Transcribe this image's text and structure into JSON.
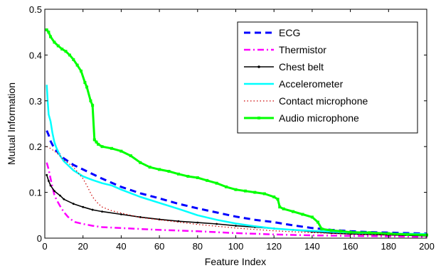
{
  "chart_data": {
    "type": "line",
    "xlabel": "Feature Index",
    "ylabel": "Mutual Information",
    "xlim": [
      0,
      200
    ],
    "ylim": [
      0,
      0.5
    ],
    "xticks": [
      0,
      20,
      40,
      60,
      80,
      100,
      120,
      140,
      160,
      180,
      200
    ],
    "yticks": [
      0,
      0.1,
      0.2,
      0.3,
      0.4,
      0.5
    ],
    "xtick_labels": [
      "0",
      "20",
      "40",
      "60",
      "80",
      "100",
      "120",
      "140",
      "160",
      "180",
      "200"
    ],
    "ytick_labels": [
      "0",
      "0.1",
      "0.2",
      "0.3",
      "0.4",
      "0.5"
    ],
    "grid": false,
    "legend_position": "top-right",
    "series": [
      {
        "name": "ECG",
        "color": "#0000ff",
        "style": "dashed",
        "x": [
          1,
          2,
          3,
          5,
          8,
          10,
          15,
          20,
          30,
          40,
          50,
          60,
          70,
          80,
          90,
          100,
          110,
          120,
          130,
          140,
          150,
          160,
          170,
          180,
          190,
          200
        ],
        "y": [
          0.235,
          0.225,
          0.212,
          0.196,
          0.182,
          0.174,
          0.16,
          0.15,
          0.13,
          0.112,
          0.098,
          0.087,
          0.075,
          0.065,
          0.056,
          0.047,
          0.04,
          0.035,
          0.028,
          0.022,
          0.018,
          0.015,
          0.013,
          0.012,
          0.011,
          0.01
        ]
      },
      {
        "name": "Thermistor",
        "color": "#ff00ff",
        "style": "dashdot",
        "x": [
          1,
          2,
          3,
          4,
          5,
          6,
          8,
          10,
          12,
          14,
          16,
          20,
          25,
          30,
          40,
          50,
          60,
          80,
          100,
          120,
          140,
          160,
          180,
          200
        ],
        "y": [
          0.165,
          0.15,
          0.13,
          0.112,
          0.095,
          0.085,
          0.07,
          0.057,
          0.047,
          0.04,
          0.035,
          0.031,
          0.027,
          0.024,
          0.022,
          0.02,
          0.018,
          0.015,
          0.011,
          0.008,
          0.006,
          0.005,
          0.004,
          0.003
        ]
      },
      {
        "name": "Chest belt",
        "color": "#000000",
        "style": "solid-dots",
        "x": [
          1,
          2,
          3,
          5,
          8,
          10,
          15,
          20,
          25,
          30,
          40,
          50,
          60,
          70,
          80,
          90,
          100,
          110,
          120,
          130,
          140,
          150,
          160,
          180,
          200
        ],
        "y": [
          0.138,
          0.125,
          0.115,
          0.103,
          0.093,
          0.085,
          0.075,
          0.068,
          0.062,
          0.058,
          0.052,
          0.046,
          0.041,
          0.037,
          0.034,
          0.031,
          0.027,
          0.024,
          0.021,
          0.018,
          0.014,
          0.011,
          0.009,
          0.007,
          0.005
        ]
      },
      {
        "name": "Accelerometer",
        "color": "#00ffff",
        "style": "solid",
        "x": [
          1,
          1.5,
          2,
          3,
          4,
          5,
          6,
          8,
          10,
          12,
          15,
          20,
          25,
          30,
          35,
          40,
          50,
          60,
          70,
          80,
          90,
          100,
          110,
          120,
          130,
          140,
          150,
          160,
          180,
          200
        ],
        "y": [
          0.335,
          0.3,
          0.27,
          0.255,
          0.23,
          0.21,
          0.198,
          0.18,
          0.168,
          0.16,
          0.148,
          0.135,
          0.127,
          0.12,
          0.115,
          0.106,
          0.09,
          0.077,
          0.064,
          0.05,
          0.04,
          0.032,
          0.026,
          0.021,
          0.018,
          0.016,
          0.014,
          0.012,
          0.01,
          0.009
        ]
      },
      {
        "name": "Contact microphone",
        "color": "#cc0000",
        "style": "dotted",
        "x": [
          1,
          3,
          5,
          8,
          10,
          12,
          15,
          18,
          20,
          22,
          25,
          28,
          30,
          35,
          40,
          50,
          60,
          80,
          100,
          120,
          140,
          160,
          180,
          200
        ],
        "y": [
          0.2,
          0.196,
          0.19,
          0.18,
          0.17,
          0.165,
          0.155,
          0.14,
          0.13,
          0.115,
          0.09,
          0.075,
          0.068,
          0.06,
          0.055,
          0.045,
          0.04,
          0.03,
          0.022,
          0.016,
          0.012,
          0.009,
          0.007,
          0.006
        ]
      },
      {
        "name": "Audio microphone",
        "color": "#00ff00",
        "style": "solid-squares",
        "x": [
          1,
          2,
          3,
          5,
          7,
          9,
          11,
          13,
          15,
          17,
          19,
          21,
          22,
          24,
          25,
          26,
          27,
          28,
          30,
          35,
          40,
          45,
          50,
          55,
          60,
          65,
          70,
          75,
          80,
          85,
          90,
          95,
          100,
          105,
          110,
          115,
          120,
          122,
          123,
          125,
          130,
          135,
          140,
          143,
          145,
          150,
          155,
          160,
          170,
          180,
          190,
          200
        ],
        "y": [
          0.455,
          0.45,
          0.44,
          0.428,
          0.42,
          0.413,
          0.408,
          0.4,
          0.39,
          0.378,
          0.365,
          0.34,
          0.33,
          0.3,
          0.29,
          0.215,
          0.21,
          0.205,
          0.2,
          0.196,
          0.19,
          0.18,
          0.165,
          0.155,
          0.15,
          0.146,
          0.14,
          0.135,
          0.132,
          0.126,
          0.12,
          0.112,
          0.106,
          0.103,
          0.1,
          0.097,
          0.09,
          0.085,
          0.068,
          0.064,
          0.058,
          0.052,
          0.046,
          0.035,
          0.02,
          0.017,
          0.015,
          0.013,
          0.012,
          0.01,
          0.008,
          0.007
        ]
      }
    ]
  }
}
